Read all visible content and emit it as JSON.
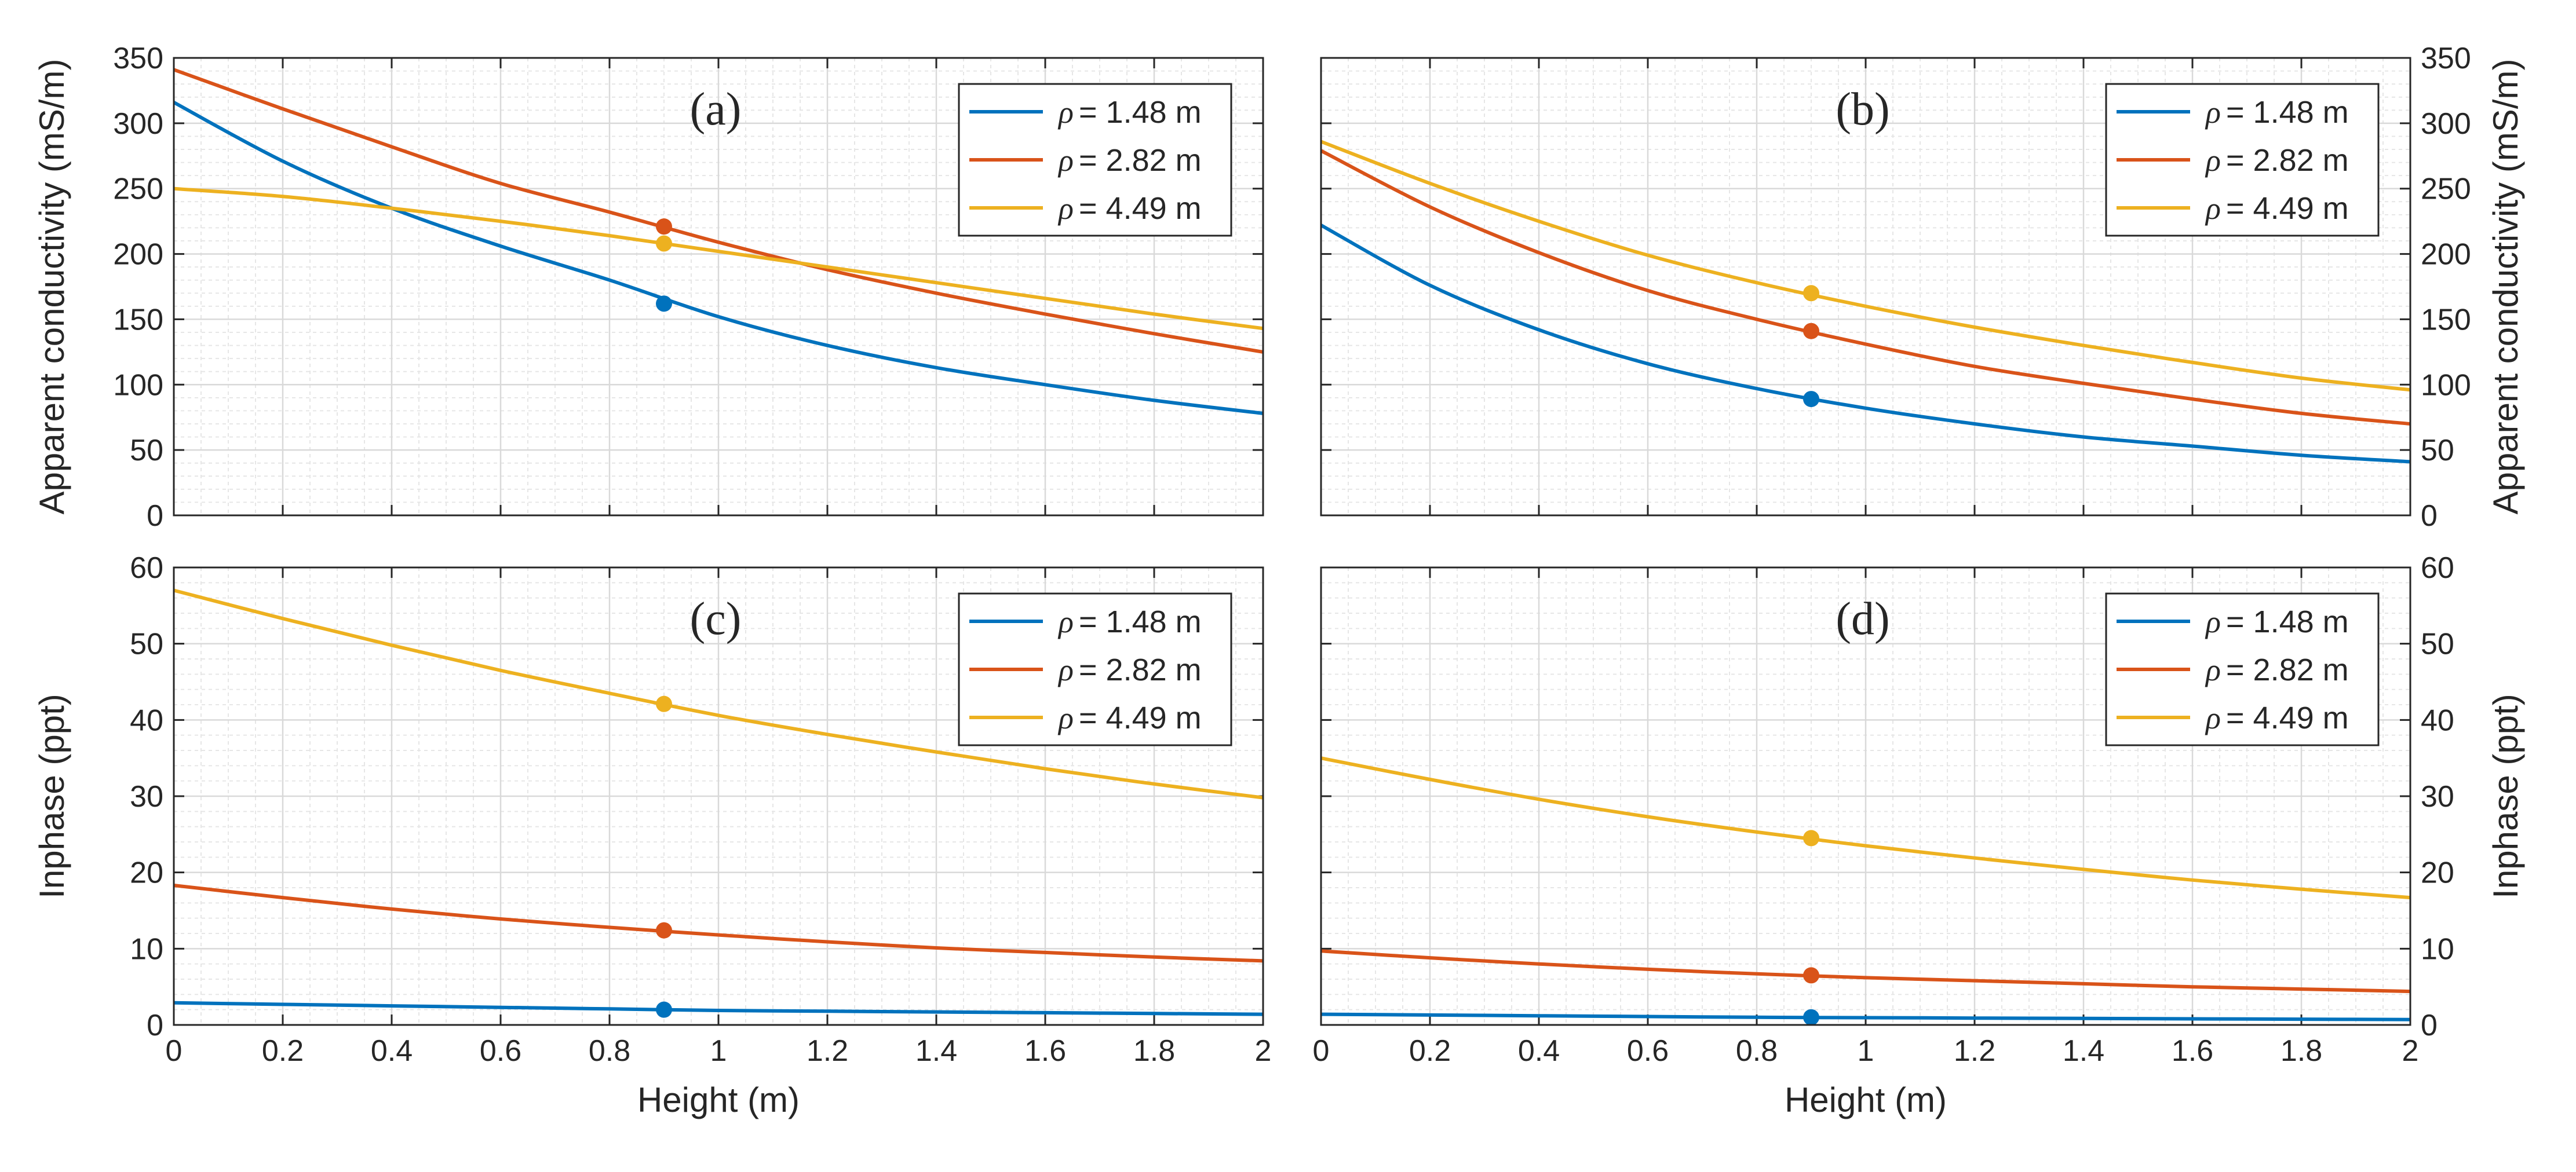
{
  "chart_data": [
    {
      "type": "line",
      "panel": "(a)",
      "xlabel": "",
      "ylabel": "Apparent conductivity (mS/m)",
      "xlim": [
        0,
        2
      ],
      "ylim": [
        0,
        350
      ],
      "xticks": [
        0,
        0.2,
        0.4,
        0.6,
        0.8,
        1,
        1.2,
        1.4,
        1.6,
        1.8,
        2
      ],
      "xtick_labels": [
        "0",
        "0.2",
        "0.4",
        "0.6",
        "0.8",
        "1",
        "1.2",
        "1.4",
        "1.6",
        "1.8",
        "2"
      ],
      "yticks": [
        0,
        50,
        100,
        150,
        200,
        250,
        300,
        350
      ],
      "ytick_labels": [
        "0",
        "50",
        "100",
        "150",
        "200",
        "250",
        "300",
        "350"
      ],
      "yaxis_side": "left",
      "show_xtick_labels": false,
      "grid": true,
      "legend_position": "top-right",
      "x": [
        0,
        0.2,
        0.4,
        0.6,
        0.8,
        1.0,
        1.2,
        1.4,
        1.6,
        1.8,
        2.0
      ],
      "series": [
        {
          "name": "= 1.48 m",
          "color": "#0072BD",
          "values": [
            316,
            271,
            235,
            206,
            180,
            152,
            130,
            113,
            100,
            88,
            78
          ],
          "marker": [
            0.9,
            162
          ]
        },
        {
          "name": "= 2.82 m",
          "color": "#D95319",
          "values": [
            341,
            311,
            282,
            254,
            232,
            209,
            188,
            170,
            154,
            139,
            125
          ],
          "marker": [
            0.9,
            221
          ]
        },
        {
          "name": "= 4.49 m",
          "color": "#EDB120",
          "values": [
            250,
            244,
            235,
            225,
            214,
            202,
            190,
            178,
            166,
            154,
            143
          ],
          "marker": [
            0.9,
            208
          ]
        }
      ]
    },
    {
      "type": "line",
      "panel": "(b)",
      "xlabel": "",
      "ylabel": "Apparent conductivity (mS/m)",
      "xlim": [
        0,
        2
      ],
      "ylim": [
        0,
        350
      ],
      "xticks": [
        0,
        0.2,
        0.4,
        0.6,
        0.8,
        1,
        1.2,
        1.4,
        1.6,
        1.8,
        2
      ],
      "xtick_labels": [
        "0",
        "0.2",
        "0.4",
        "0.6",
        "0.8",
        "1",
        "1.2",
        "1.4",
        "1.6",
        "1.8",
        "2"
      ],
      "yticks": [
        0,
        50,
        100,
        150,
        200,
        250,
        300,
        350
      ],
      "ytick_labels": [
        "0",
        "50",
        "100",
        "150",
        "200",
        "250",
        "300",
        "350"
      ],
      "yaxis_side": "right",
      "show_xtick_labels": false,
      "grid": true,
      "legend_position": "top-right",
      "x": [
        0,
        0.2,
        0.4,
        0.6,
        0.8,
        1.0,
        1.2,
        1.4,
        1.6,
        1.8,
        2.0
      ],
      "series": [
        {
          "name": "= 1.48 m",
          "color": "#0072BD",
          "values": [
            222,
            176,
            142,
            116,
            97,
            82,
            70,
            60,
            53,
            46,
            41
          ],
          "marker": [
            0.9,
            89
          ]
        },
        {
          "name": "= 2.82 m",
          "color": "#D95319",
          "values": [
            279,
            236,
            201,
            172,
            150,
            131,
            114,
            101,
            89,
            78,
            70
          ],
          "marker": [
            0.9,
            141
          ]
        },
        {
          "name": "= 4.49 m",
          "color": "#EDB120",
          "values": [
            286,
            254,
            225,
            199,
            178,
            160,
            144,
            130,
            117,
            105,
            96
          ],
          "marker": [
            0.9,
            170
          ]
        }
      ]
    },
    {
      "type": "line",
      "panel": "(c)",
      "xlabel": "Height (m)",
      "ylabel": "Inphase (ppt)",
      "xlim": [
        0,
        2
      ],
      "ylim": [
        0,
        60
      ],
      "xticks": [
        0,
        0.2,
        0.4,
        0.6,
        0.8,
        1,
        1.2,
        1.4,
        1.6,
        1.8,
        2
      ],
      "xtick_labels": [
        "0",
        "0.2",
        "0.4",
        "0.6",
        "0.8",
        "1",
        "1.2",
        "1.4",
        "1.6",
        "1.8",
        "2"
      ],
      "yticks": [
        0,
        10,
        20,
        30,
        40,
        50,
        60
      ],
      "ytick_labels": [
        "0",
        "10",
        "20",
        "30",
        "40",
        "50",
        "60"
      ],
      "yaxis_side": "left",
      "show_xtick_labels": true,
      "grid": true,
      "legend_position": "top-right",
      "x": [
        0,
        0.2,
        0.4,
        0.6,
        0.8,
        1.0,
        1.2,
        1.4,
        1.6,
        1.8,
        2.0
      ],
      "series": [
        {
          "name": "= 1.48 m",
          "color": "#0072BD",
          "values": [
            2.9,
            2.7,
            2.5,
            2.3,
            2.1,
            1.9,
            1.8,
            1.7,
            1.6,
            1.5,
            1.4
          ],
          "marker": [
            0.9,
            2.0
          ]
        },
        {
          "name": "= 2.82 m",
          "color": "#D95319",
          "values": [
            18.3,
            16.7,
            15.2,
            13.9,
            12.8,
            11.8,
            10.9,
            10.1,
            9.5,
            8.9,
            8.4
          ],
          "marker": [
            0.9,
            12.4
          ]
        },
        {
          "name": "= 4.49 m",
          "color": "#EDB120",
          "values": [
            57.0,
            53.3,
            49.8,
            46.5,
            43.5,
            40.6,
            38.1,
            35.8,
            33.6,
            31.6,
            29.8
          ],
          "marker": [
            0.9,
            42.1
          ]
        }
      ]
    },
    {
      "type": "line",
      "panel": "(d)",
      "xlabel": "Height (m)",
      "ylabel": "Inphase (ppt)",
      "xlim": [
        0,
        2
      ],
      "ylim": [
        0,
        60
      ],
      "xticks": [
        0,
        0.2,
        0.4,
        0.6,
        0.8,
        1,
        1.2,
        1.4,
        1.6,
        1.8,
        2
      ],
      "xtick_labels": [
        "0",
        "0.2",
        "0.4",
        "0.6",
        "0.8",
        "1",
        "1.2",
        "1.4",
        "1.6",
        "1.8",
        "2"
      ],
      "yticks": [
        0,
        10,
        20,
        30,
        40,
        50,
        60
      ],
      "ytick_labels": [
        "0",
        "10",
        "20",
        "30",
        "40",
        "50",
        "60"
      ],
      "yaxis_side": "right",
      "show_xtick_labels": true,
      "grid": true,
      "legend_position": "top-right",
      "x": [
        0,
        0.2,
        0.4,
        0.6,
        0.8,
        1.0,
        1.2,
        1.4,
        1.6,
        1.8,
        2.0
      ],
      "series": [
        {
          "name": "= 1.48 m",
          "color": "#0072BD",
          "values": [
            1.4,
            1.3,
            1.2,
            1.1,
            1.0,
            0.95,
            0.9,
            0.85,
            0.8,
            0.75,
            0.7
          ],
          "marker": [
            0.9,
            1.0
          ]
        },
        {
          "name": "= 2.82 m",
          "color": "#D95319",
          "values": [
            9.7,
            8.8,
            8.0,
            7.3,
            6.7,
            6.2,
            5.8,
            5.4,
            5.0,
            4.7,
            4.4
          ],
          "marker": [
            0.9,
            6.5
          ]
        },
        {
          "name": "= 4.49 m",
          "color": "#EDB120",
          "values": [
            35.0,
            32.2,
            29.6,
            27.3,
            25.3,
            23.5,
            21.9,
            20.4,
            19.0,
            17.8,
            16.7
          ],
          "marker": [
            0.9,
            24.5
          ]
        }
      ]
    }
  ]
}
